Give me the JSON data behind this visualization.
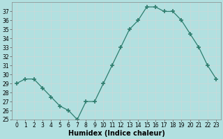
{
  "x": [
    0,
    1,
    2,
    3,
    4,
    5,
    6,
    7,
    8,
    9,
    10,
    11,
    12,
    13,
    14,
    15,
    16,
    17,
    18,
    19,
    20,
    21,
    22,
    23
  ],
  "y": [
    29,
    29.5,
    29.5,
    28.5,
    27.5,
    26.5,
    26,
    25,
    27,
    27,
    29,
    31,
    33,
    35,
    36,
    37.5,
    37.5,
    37,
    37,
    36,
    34.5,
    33,
    31,
    29.5
  ],
  "xlabel": "Humidex (Indice chaleur)",
  "ylim_min": 25,
  "ylim_max": 38,
  "xlim_min": -0.5,
  "xlim_max": 23.5,
  "line_color": "#2e7d6e",
  "marker": "+",
  "marker_size": 4,
  "bg_color": "#b2e0e0",
  "grid_color": "#c8dada",
  "yticks": [
    25,
    26,
    27,
    28,
    29,
    30,
    31,
    32,
    33,
    34,
    35,
    36,
    37
  ],
  "xticks": [
    0,
    1,
    2,
    3,
    4,
    5,
    6,
    7,
    8,
    9,
    10,
    11,
    12,
    13,
    14,
    15,
    16,
    17,
    18,
    19,
    20,
    21,
    22,
    23
  ],
  "tick_fontsize": 5.5,
  "xlabel_fontsize": 7
}
